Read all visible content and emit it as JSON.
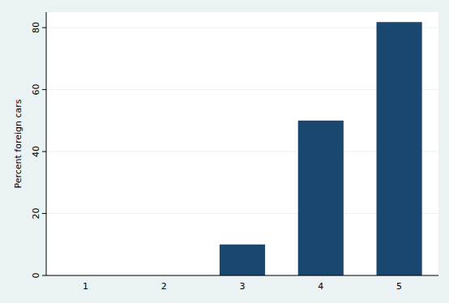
{
  "chart_data": {
    "type": "bar",
    "y_label": "Percent foreign cars",
    "categories": [
      "1",
      "2",
      "3",
      "4",
      "5"
    ],
    "values": [
      0,
      0,
      10,
      50,
      81.8
    ],
    "color": "#1a476f",
    "ylim": [
      0,
      85
    ],
    "yticks": [
      0,
      20,
      40,
      60,
      80
    ],
    "grid": true
  }
}
